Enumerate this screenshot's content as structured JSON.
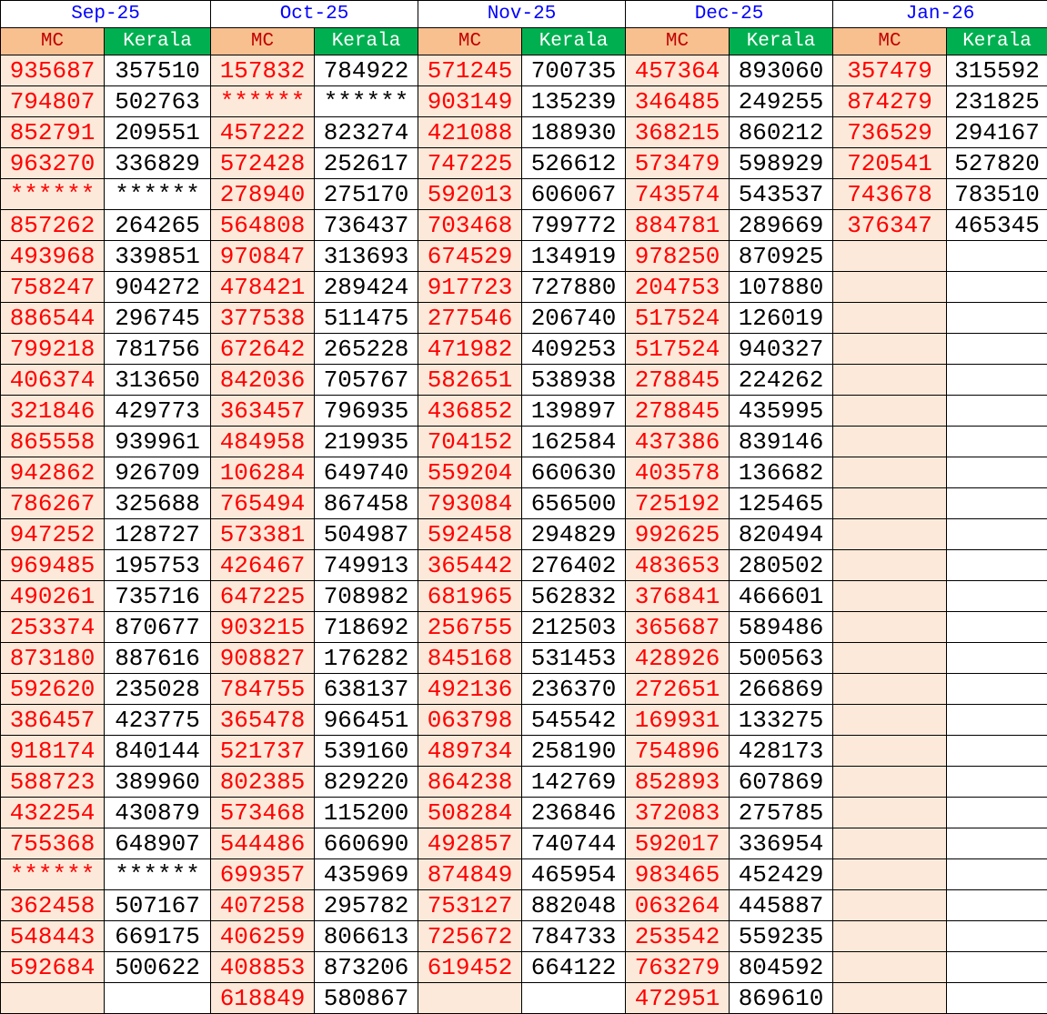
{
  "colors": {
    "month_text": "#0000ff",
    "mc_header_bg": "#f8bf8f",
    "kerala_header_bg": "#00b050",
    "mc_cell_bg": "#fde9d9",
    "mc_text": "#ff0000",
    "kerala_text": "#000000"
  },
  "sub_headers": {
    "mc": "MC",
    "kerala": "Kerala"
  },
  "months": [
    {
      "label": "Sep-25",
      "rows": [
        [
          "935687",
          "357510"
        ],
        [
          "794807",
          "502763"
        ],
        [
          "852791",
          "209551"
        ],
        [
          "963270",
          "336829"
        ],
        [
          "******",
          "******"
        ],
        [
          "857262",
          "264265"
        ],
        [
          "493968",
          "339851"
        ],
        [
          "758247",
          "904272"
        ],
        [
          "886544",
          "296745"
        ],
        [
          "799218",
          "781756"
        ],
        [
          "406374",
          "313650"
        ],
        [
          "321846",
          "429773"
        ],
        [
          "865558",
          "939961"
        ],
        [
          "942862",
          "926709"
        ],
        [
          "786267",
          "325688"
        ],
        [
          "947252",
          "128727"
        ],
        [
          "969485",
          "195753"
        ],
        [
          "490261",
          "735716"
        ],
        [
          "253374",
          "870677"
        ],
        [
          "873180",
          "887616"
        ],
        [
          "592620",
          "235028"
        ],
        [
          "386457",
          "423775"
        ],
        [
          "918174",
          "840144"
        ],
        [
          "588723",
          "389960"
        ],
        [
          "432254",
          "430879"
        ],
        [
          "755368",
          "648907"
        ],
        [
          "******",
          "******"
        ],
        [
          "362458",
          "507167"
        ],
        [
          "548443",
          "669175"
        ],
        [
          "592684",
          "500622"
        ],
        [
          "",
          ""
        ]
      ]
    },
    {
      "label": "Oct-25",
      "rows": [
        [
          "157832",
          "784922"
        ],
        [
          "******",
          "******"
        ],
        [
          "457222",
          "823274"
        ],
        [
          "572428",
          "252617"
        ],
        [
          "278940",
          "275170"
        ],
        [
          "564808",
          "736437"
        ],
        [
          "970847",
          "313693"
        ],
        [
          "478421",
          "289424"
        ],
        [
          "377538",
          "511475"
        ],
        [
          "672642",
          "265228"
        ],
        [
          "842036",
          "705767"
        ],
        [
          "363457",
          "796935"
        ],
        [
          "484958",
          "219935"
        ],
        [
          "106284",
          "649740"
        ],
        [
          "765494",
          "867458"
        ],
        [
          "573381",
          "504987"
        ],
        [
          "426467",
          "749913"
        ],
        [
          "647225",
          "708982"
        ],
        [
          "903215",
          "718692"
        ],
        [
          "908827",
          "176282"
        ],
        [
          "784755",
          "638137"
        ],
        [
          "365478",
          "966451"
        ],
        [
          "521737",
          "539160"
        ],
        [
          "802385",
          "829220"
        ],
        [
          "573468",
          "115200"
        ],
        [
          "544486",
          "660690"
        ],
        [
          "699357",
          "435969"
        ],
        [
          "407258",
          "295782"
        ],
        [
          "406259",
          "806613"
        ],
        [
          "408853",
          "873206"
        ],
        [
          "618849",
          "580867"
        ]
      ]
    },
    {
      "label": "Nov-25",
      "rows": [
        [
          "571245",
          "700735"
        ],
        [
          "903149",
          "135239"
        ],
        [
          "421088",
          "188930"
        ],
        [
          "747225",
          "526612"
        ],
        [
          "592013",
          "606067"
        ],
        [
          "703468",
          "799772"
        ],
        [
          "674529",
          "134919"
        ],
        [
          "917723",
          "727880"
        ],
        [
          "277546",
          "206740"
        ],
        [
          "471982",
          "409253"
        ],
        [
          "582651",
          "538938"
        ],
        [
          "436852",
          "139897"
        ],
        [
          "704152",
          "162584"
        ],
        [
          "559204",
          "660630"
        ],
        [
          "793084",
          "656500"
        ],
        [
          "592458",
          "294829"
        ],
        [
          "365442",
          "276402"
        ],
        [
          "681965",
          "562832"
        ],
        [
          "256755",
          "212503"
        ],
        [
          "845168",
          "531453"
        ],
        [
          "492136",
          "236370"
        ],
        [
          "063798",
          "545542"
        ],
        [
          "489734",
          "258190"
        ],
        [
          "864238",
          "142769"
        ],
        [
          "508284",
          "236846"
        ],
        [
          "492857",
          "740744"
        ],
        [
          "874849",
          "465954"
        ],
        [
          "753127",
          "882048"
        ],
        [
          "725672",
          "784733"
        ],
        [
          "619452",
          "664122"
        ],
        [
          "",
          ""
        ]
      ]
    },
    {
      "label": "Dec-25",
      "rows": [
        [
          "457364",
          "893060"
        ],
        [
          "346485",
          "249255"
        ],
        [
          "368215",
          "860212"
        ],
        [
          "573479",
          "598929"
        ],
        [
          "743574",
          "543537"
        ],
        [
          "884781",
          "289669"
        ],
        [
          "978250",
          "870925"
        ],
        [
          "204753",
          "107880"
        ],
        [
          "517524",
          "126019"
        ],
        [
          "517524",
          "940327"
        ],
        [
          "278845",
          "224262"
        ],
        [
          "278845",
          "435995"
        ],
        [
          "437386",
          "839146"
        ],
        [
          "403578",
          "136682"
        ],
        [
          "725192",
          "125465"
        ],
        [
          "992625",
          "820494"
        ],
        [
          "483653",
          "280502"
        ],
        [
          "376841",
          "466601"
        ],
        [
          "365687",
          "589486"
        ],
        [
          "428926",
          "500563"
        ],
        [
          "272651",
          "266869"
        ],
        [
          "169931",
          "133275"
        ],
        [
          "754896",
          "428173"
        ],
        [
          "852893",
          "607869"
        ],
        [
          "372083",
          "275785"
        ],
        [
          "592017",
          "336954"
        ],
        [
          "983465",
          "452429"
        ],
        [
          "063264",
          "445887"
        ],
        [
          "253542",
          "559235"
        ],
        [
          "763279",
          "804592"
        ],
        [
          "472951",
          "869610"
        ]
      ]
    },
    {
      "label": "Jan-26",
      "rows": [
        [
          "357479",
          "315592"
        ],
        [
          "874279",
          "231825"
        ],
        [
          "736529",
          "294167"
        ],
        [
          "720541",
          "527820"
        ],
        [
          "743678",
          "783510"
        ],
        [
          "376347",
          "465345"
        ],
        [
          "",
          ""
        ],
        [
          "",
          ""
        ],
        [
          "",
          ""
        ],
        [
          "",
          ""
        ],
        [
          "",
          ""
        ],
        [
          "",
          ""
        ],
        [
          "",
          ""
        ],
        [
          "",
          ""
        ],
        [
          "",
          ""
        ],
        [
          "",
          ""
        ],
        [
          "",
          ""
        ],
        [
          "",
          ""
        ],
        [
          "",
          ""
        ],
        [
          "",
          ""
        ],
        [
          "",
          ""
        ],
        [
          "",
          ""
        ],
        [
          "",
          ""
        ],
        [
          "",
          ""
        ],
        [
          "",
          ""
        ],
        [
          "",
          ""
        ],
        [
          "",
          ""
        ],
        [
          "",
          ""
        ],
        [
          "",
          ""
        ],
        [
          "",
          ""
        ],
        [
          "",
          ""
        ]
      ]
    }
  ]
}
